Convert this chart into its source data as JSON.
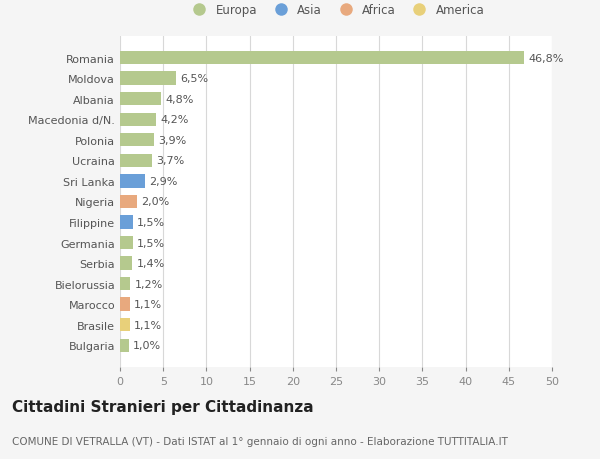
{
  "countries": [
    "Romania",
    "Moldova",
    "Albania",
    "Macedonia d/N.",
    "Polonia",
    "Ucraina",
    "Sri Lanka",
    "Nigeria",
    "Filippine",
    "Germania",
    "Serbia",
    "Bielorussia",
    "Marocco",
    "Brasile",
    "Bulgaria"
  ],
  "values": [
    46.8,
    6.5,
    4.8,
    4.2,
    3.9,
    3.7,
    2.9,
    2.0,
    1.5,
    1.5,
    1.4,
    1.2,
    1.1,
    1.1,
    1.0
  ],
  "labels": [
    "46,8%",
    "6,5%",
    "4,8%",
    "4,2%",
    "3,9%",
    "3,7%",
    "2,9%",
    "2,0%",
    "1,5%",
    "1,5%",
    "1,4%",
    "1,2%",
    "1,1%",
    "1,1%",
    "1,0%"
  ],
  "continents": [
    "Europa",
    "Europa",
    "Europa",
    "Europa",
    "Europa",
    "Europa",
    "Asia",
    "Africa",
    "Asia",
    "Europa",
    "Europa",
    "Europa",
    "Africa",
    "America",
    "Europa"
  ],
  "continent_colors": {
    "Europa": "#b5c98e",
    "Asia": "#6a9fd8",
    "Africa": "#e8a97e",
    "America": "#e8d07a"
  },
  "legend_order": [
    "Europa",
    "Asia",
    "Africa",
    "America"
  ],
  "title": "Cittadini Stranieri per Cittadinanza",
  "subtitle": "COMUNE DI VETRALLA (VT) - Dati ISTAT al 1° gennaio di ogni anno - Elaborazione TUTTITALIA.IT",
  "xlim": [
    0,
    50
  ],
  "xticks": [
    0,
    5,
    10,
    15,
    20,
    25,
    30,
    35,
    40,
    45,
    50
  ],
  "background_color": "#f5f5f5",
  "plot_bg_color": "#ffffff",
  "grid_color": "#d8d8d8",
  "title_fontsize": 11,
  "subtitle_fontsize": 7.5,
  "label_fontsize": 8,
  "tick_fontsize": 8,
  "legend_fontsize": 8.5
}
